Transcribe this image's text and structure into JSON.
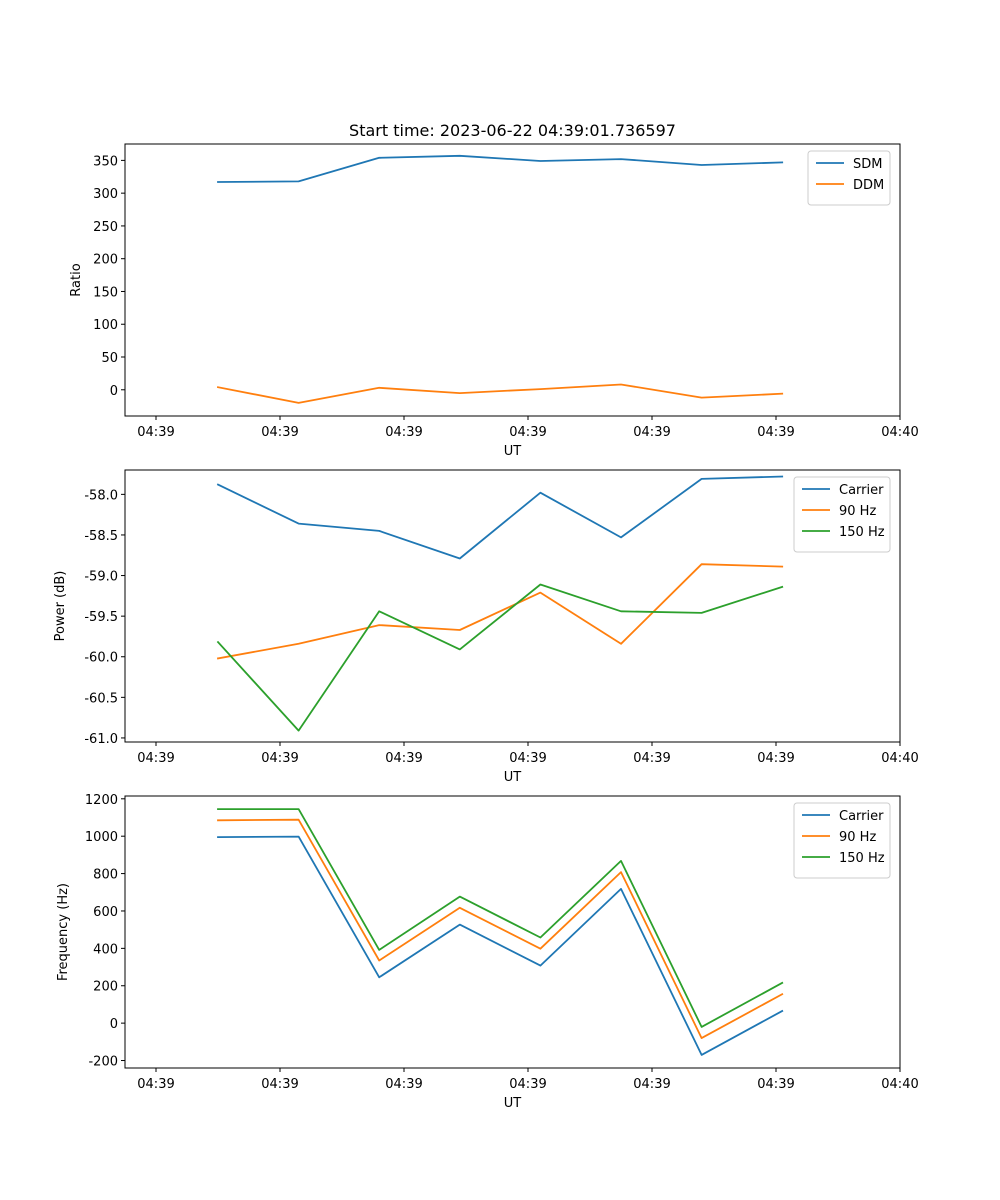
{
  "chart_data": [
    {
      "type": "line",
      "title": "Start time: 2023-06-22 04:39:01.736597",
      "xlabel": "UT",
      "ylabel": "Ratio",
      "xlim": [
        -0.5,
        12.0
      ],
      "ylim": [
        -40,
        375
      ],
      "x_ticks": [
        0,
        2,
        4,
        6,
        8,
        10,
        12
      ],
      "x_tick_labels": [
        "04:39",
        "04:39",
        "04:39",
        "04:39",
        "04:39",
        "04:39",
        "04:40"
      ],
      "y_ticks": [
        0,
        50,
        100,
        150,
        200,
        250,
        300,
        350
      ],
      "x": [
        1.0,
        2.3,
        3.6,
        4.9,
        6.2,
        7.5,
        8.8,
        10.1
      ],
      "series": [
        {
          "name": "SDM",
          "color": "#1f77b4",
          "values": [
            317,
            318,
            354,
            357,
            349,
            352,
            343,
            347
          ]
        },
        {
          "name": "DDM",
          "color": "#ff7f0e",
          "values": [
            4,
            -20,
            3,
            -5,
            1,
            8,
            -12,
            -6
          ]
        }
      ],
      "legend": "top-right",
      "grid": false
    },
    {
      "type": "line",
      "title": "",
      "xlabel": "UT",
      "ylabel": "Power (dB)",
      "xlim": [
        -0.5,
        12.0
      ],
      "ylim": [
        -61.05,
        -57.7
      ],
      "x_ticks": [
        0,
        2,
        4,
        6,
        8,
        10,
        12
      ],
      "x_tick_labels": [
        "04:39",
        "04:39",
        "04:39",
        "04:39",
        "04:39",
        "04:39",
        "04:40"
      ],
      "y_ticks": [
        -61.0,
        -60.5,
        -60.0,
        -59.5,
        -59.0,
        -58.5,
        -58.0
      ],
      "x": [
        1.0,
        2.3,
        3.6,
        4.9,
        6.2,
        7.5,
        8.8,
        10.1
      ],
      "series": [
        {
          "name": "Carrier",
          "color": "#1f77b4",
          "values": [
            -57.88,
            -58.36,
            -58.45,
            -58.79,
            -57.98,
            -58.53,
            -57.81,
            -57.78
          ]
        },
        {
          "name": "90 Hz",
          "color": "#ff7f0e",
          "values": [
            -60.02,
            -59.84,
            -59.61,
            -59.67,
            -59.21,
            -59.84,
            -58.86,
            -58.89
          ]
        },
        {
          "name": "150 Hz",
          "color": "#2ca02c",
          "values": [
            -59.82,
            -60.91,
            -59.44,
            -59.91,
            -59.11,
            -59.44,
            -59.46,
            -59.14
          ]
        }
      ],
      "legend": "top-right",
      "grid": false
    },
    {
      "type": "line",
      "title": "",
      "xlabel": "UT",
      "ylabel": "Frequency (Hz)",
      "xlim": [
        -0.5,
        12.0
      ],
      "ylim": [
        -240,
        1215
      ],
      "x_ticks": [
        0,
        2,
        4,
        6,
        8,
        10,
        12
      ],
      "x_tick_labels": [
        "04:39",
        "04:39",
        "04:39",
        "04:39",
        "04:39",
        "04:39",
        "04:40"
      ],
      "y_ticks": [
        -200,
        0,
        200,
        400,
        600,
        800,
        1000,
        1200
      ],
      "x": [
        1.0,
        2.3,
        3.6,
        4.9,
        6.2,
        7.5,
        8.8,
        10.1
      ],
      "series": [
        {
          "name": "Carrier",
          "color": "#1f77b4",
          "values": [
            995,
            998,
            245,
            527,
            308,
            718,
            -170,
            65
          ]
        },
        {
          "name": "90 Hz",
          "color": "#ff7f0e",
          "values": [
            1085,
            1088,
            335,
            617,
            398,
            808,
            -80,
            155
          ]
        },
        {
          "name": "150 Hz",
          "color": "#2ca02c",
          "values": [
            1145,
            1145,
            392,
            677,
            458,
            868,
            -20,
            215
          ]
        }
      ],
      "legend": "top-right",
      "grid": false
    }
  ]
}
